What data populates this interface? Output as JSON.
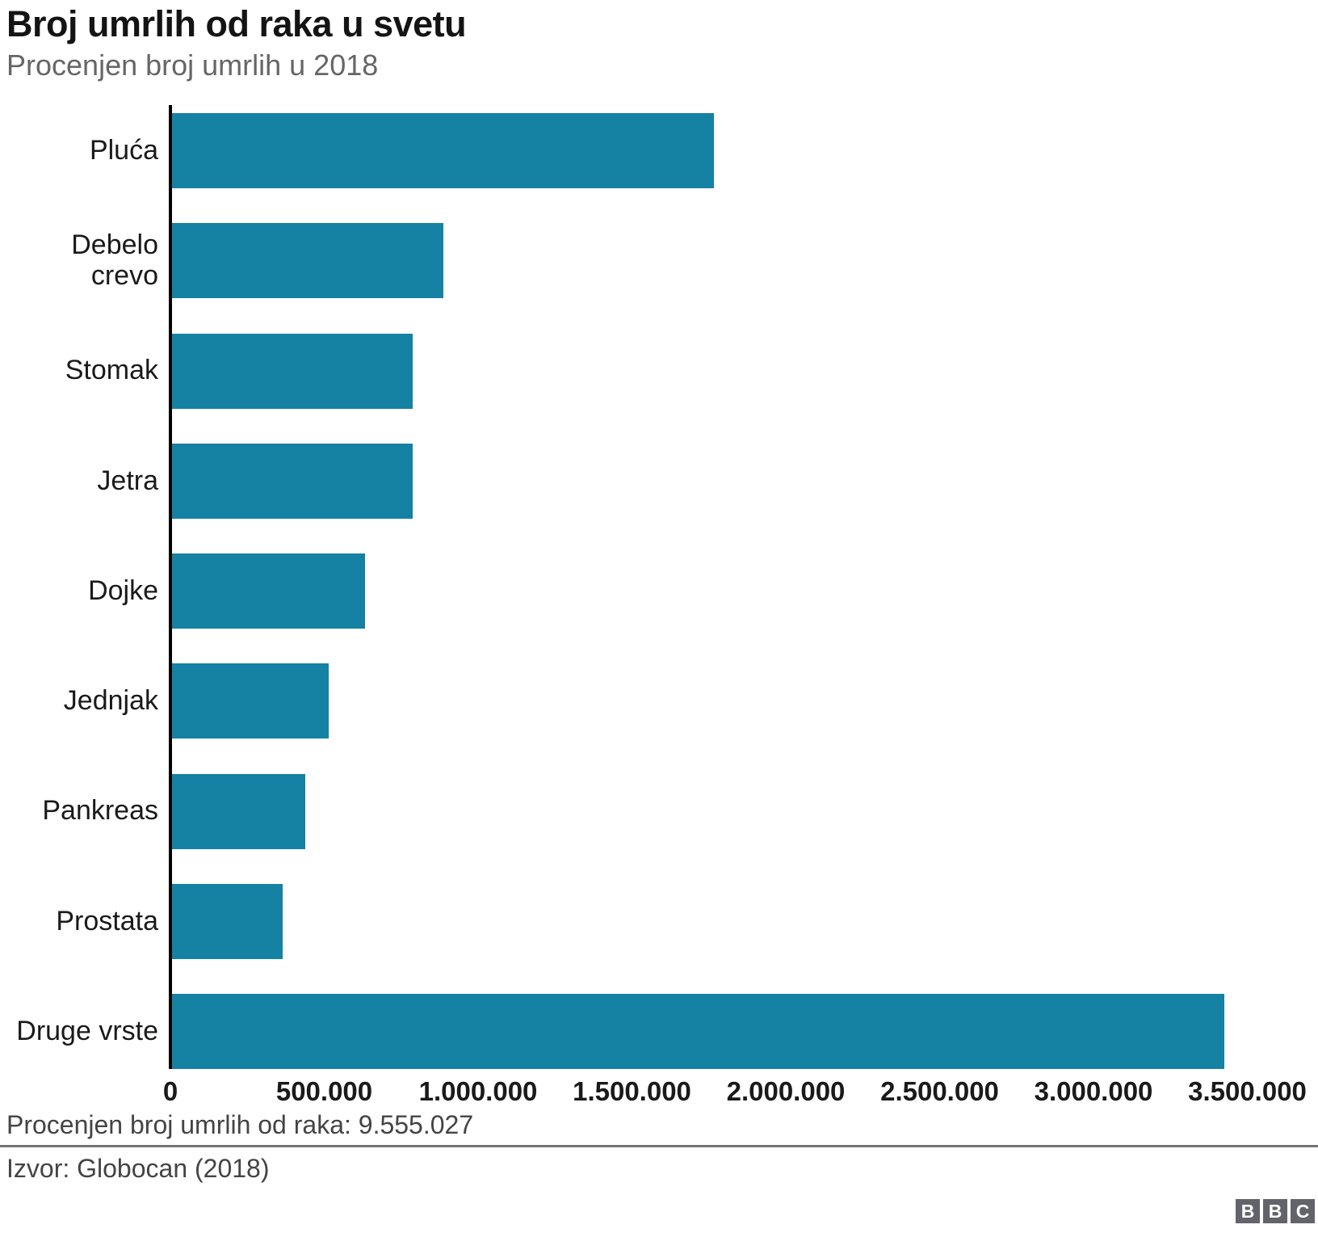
{
  "header": {
    "title": "Broj umrlih od raka u svetu",
    "subtitle": "Procenjen broj umrlih u 2018"
  },
  "chart_data": {
    "type": "bar",
    "orientation": "horizontal",
    "title": "Broj umrlih od raka u svetu",
    "subtitle": "Procenjen broj umrlih u 2018",
    "categories": [
      "Pluća",
      "Debelo crevo",
      "Stomak",
      "Jetra",
      "Dojke",
      "Jednjak",
      "Pankreas",
      "Prostata",
      "Druge vrste"
    ],
    "values": [
      1761007,
      881000,
      783000,
      782000,
      627000,
      509000,
      432000,
      359000,
      3421020
    ],
    "total_deaths": 9555027,
    "xlabel": "",
    "ylabel": "",
    "xlim": [
      0,
      3500000
    ],
    "x_ticks": [
      0,
      500000,
      1000000,
      1500000,
      2000000,
      2500000,
      3000000,
      3500000
    ],
    "x_tick_labels": [
      "0",
      "500.000",
      "1.000.000",
      "1.500.000",
      "2.000.000",
      "2.500.000",
      "3.000.000",
      "3.500.000"
    ],
    "bar_color": "#1581A3",
    "grid": false,
    "legend": "none"
  },
  "footer": {
    "note": "Procenjen broj umrlih od raka: 9.555.027",
    "source": "Izvor: Globocan (2018)",
    "logo_letters": [
      "B",
      "B",
      "C"
    ]
  },
  "colors": {
    "bar": "#1581A3",
    "axis": "#000000",
    "title_text": "#141414",
    "subtitle_text": "#666666",
    "footer_text": "#444444",
    "divider": "#757575",
    "logo_background": "#63636B",
    "logo_letter": "#FFFFFF"
  }
}
